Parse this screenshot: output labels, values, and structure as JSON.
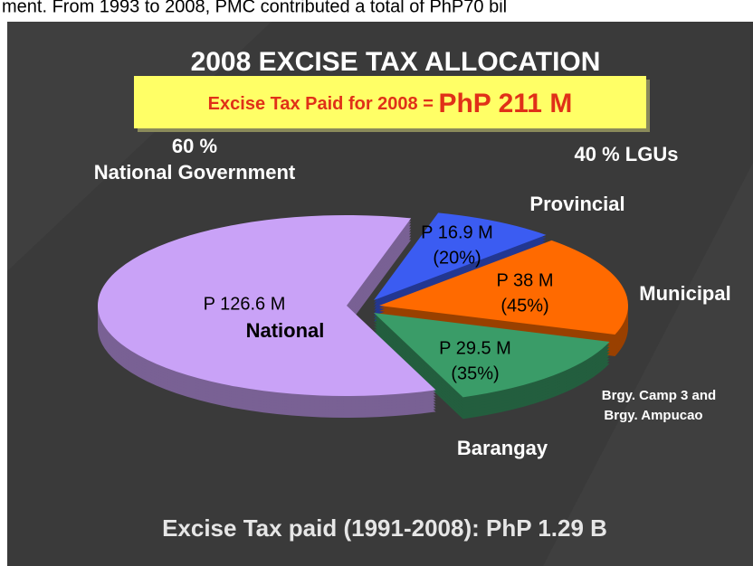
{
  "header_fragment": "ment. From 1993 to 2008, PMC contributed a total of PhP70 bil",
  "chart_data": {
    "type": "pie",
    "title": "2008 EXCISE TAX ALLOCATION",
    "banner": {
      "label": "Excise Tax Paid for 2008 = ",
      "amount": "PhP 211 M"
    },
    "groups": [
      {
        "share": "60 %",
        "name": "National Government"
      },
      {
        "share": "40 % LGUs"
      }
    ],
    "categories": [
      "National",
      "Provincial",
      "Municipal",
      "Barangay"
    ],
    "values": [
      126.6,
      16.9,
      38,
      29.5
    ],
    "value_labels": [
      "P 126.6 M",
      "P 16.9 M",
      "P 38 M",
      "P 29.5 M"
    ],
    "lgu_shares": [
      null,
      20,
      45,
      35
    ],
    "lgu_share_labels": [
      null,
      "(20%)",
      "(45%)",
      "(35%)"
    ],
    "colors": [
      "#c9a2f7",
      "#3b5cf2",
      "#ff6a00",
      "#3a9c68"
    ],
    "annotation": [
      "Brgy. Camp 3 and",
      "Brgy. Ampucao"
    ],
    "footer": "Excise Tax paid (1991-2008): PhP 1.29 B"
  }
}
